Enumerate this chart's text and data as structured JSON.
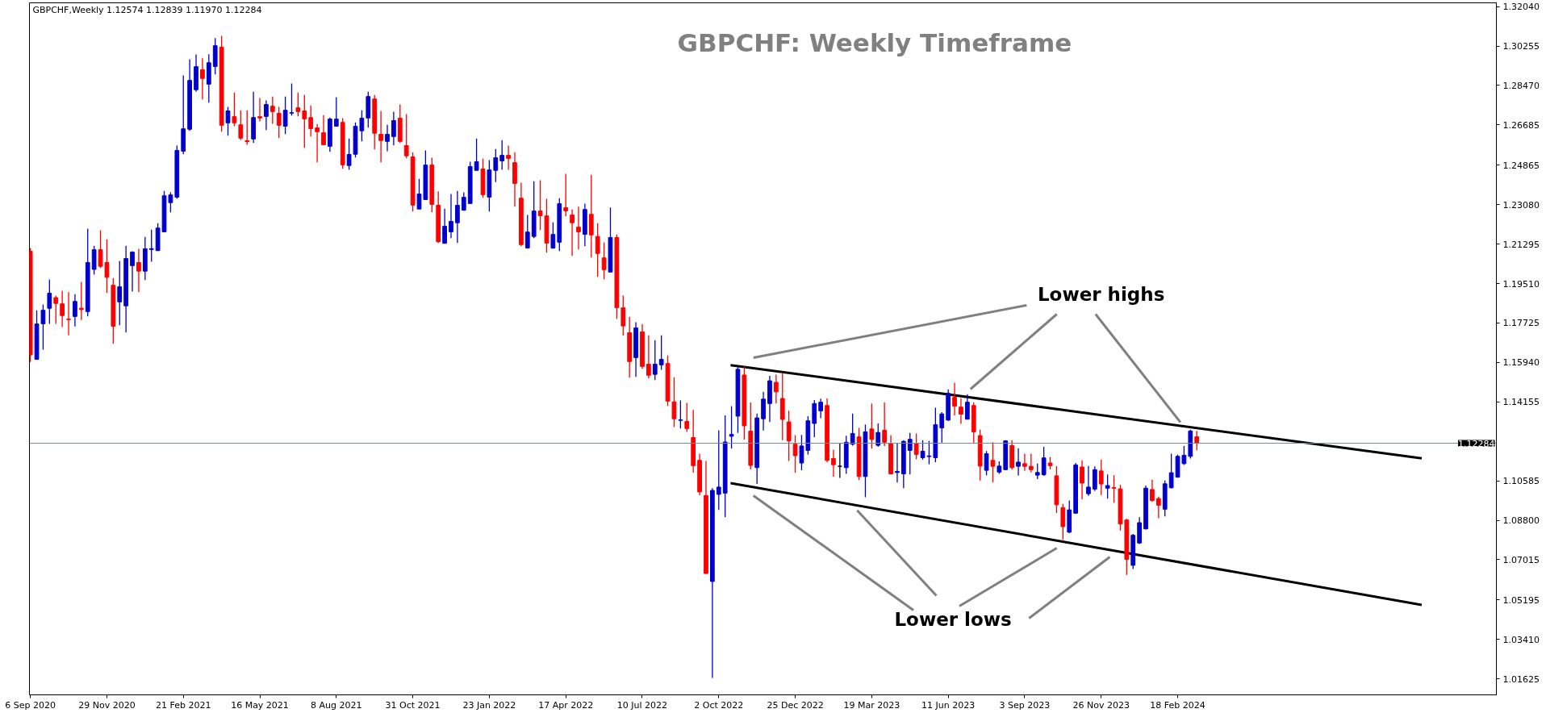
{
  "chart_data": {
    "type": "candlestick",
    "title": "GBPCHF: Weekly Timeframe",
    "annotations": [
      "GBPCHF,Weekly  1.12574 1.12839 1.11970 1.12284",
      {
        "text": "Lower highs",
        "x": "2024-02-21",
        "y": 1.1323
      },
      {
        "text": "Lower lows",
        "x": "2023-03-03",
        "y": 1.0925
      }
    ],
    "x": [
      "2020-09-06",
      "2020-09-13",
      "2020-09-20",
      "2020-09-27",
      "2020-10-04",
      "2020-10-11",
      "2020-10-18",
      "2020-10-25",
      "2020-11-01",
      "2020-11-08",
      "2020-11-15",
      "2020-11-22",
      "2020-11-29",
      "2020-12-06",
      "2020-12-13",
      "2020-12-20",
      "2020-12-27",
      "2021-01-03",
      "2021-01-10",
      "2021-01-17",
      "2021-01-24",
      "2021-01-31",
      "2021-02-07",
      "2021-02-14",
      "2021-02-21",
      "2021-02-28",
      "2021-03-07",
      "2021-03-14",
      "2021-03-21",
      "2021-03-28",
      "2021-04-04",
      "2021-04-11",
      "2021-04-18",
      "2021-04-25",
      "2021-05-02",
      "2021-05-09",
      "2021-05-16",
      "2021-05-23",
      "2021-05-30",
      "2021-06-06",
      "2021-06-13",
      "2021-06-20",
      "2021-06-27",
      "2021-07-04",
      "2021-07-11",
      "2021-07-18",
      "2021-07-25",
      "2021-08-01",
      "2021-08-08",
      "2021-08-15",
      "2021-08-22",
      "2021-08-29",
      "2021-09-05",
      "2021-09-12",
      "2021-09-19",
      "2021-09-26",
      "2021-10-03",
      "2021-10-10",
      "2021-10-17",
      "2021-10-24",
      "2021-10-31",
      "2021-11-07",
      "2021-11-14",
      "2021-11-21",
      "2021-11-28",
      "2021-12-05",
      "2021-12-12",
      "2021-12-19",
      "2021-12-26",
      "2022-01-02",
      "2022-01-09",
      "2022-01-16",
      "2022-01-23",
      "2022-01-30",
      "2022-02-06",
      "2022-02-13",
      "2022-02-20",
      "2022-02-27",
      "2022-03-06",
      "2022-03-13",
      "2022-03-20",
      "2022-03-27",
      "2022-04-03",
      "2022-04-10",
      "2022-04-17",
      "2022-04-24",
      "2022-05-01",
      "2022-05-08",
      "2022-05-15",
      "2022-05-22",
      "2022-05-29",
      "2022-06-05",
      "2022-06-12",
      "2022-06-19",
      "2022-06-26",
      "2022-07-03",
      "2022-07-10",
      "2022-07-17",
      "2022-07-24",
      "2022-07-31",
      "2022-08-07",
      "2022-08-14",
      "2022-08-21",
      "2022-08-28",
      "2022-09-04",
      "2022-09-11",
      "2022-09-18",
      "2022-09-25",
      "2022-10-02",
      "2022-10-09",
      "2022-10-16",
      "2022-10-23",
      "2022-10-30",
      "2022-11-06",
      "2022-11-13",
      "2022-11-20",
      "2022-11-27",
      "2022-12-04",
      "2022-12-11",
      "2022-12-18",
      "2022-12-25",
      "2023-01-01",
      "2023-01-08",
      "2023-01-15",
      "2023-01-22",
      "2023-01-29",
      "2023-02-05",
      "2023-02-12",
      "2023-02-19",
      "2023-02-26",
      "2023-03-05",
      "2023-03-12",
      "2023-03-19",
      "2023-03-26",
      "2023-04-02",
      "2023-04-09",
      "2023-04-16",
      "2023-04-23",
      "2023-04-30",
      "2023-05-07",
      "2023-05-14",
      "2023-05-21",
      "2023-05-28",
      "2023-06-04",
      "2023-06-11",
      "2023-06-18",
      "2023-06-25",
      "2023-07-02",
      "2023-07-09",
      "2023-07-16",
      "2023-07-23",
      "2023-07-30",
      "2023-08-06",
      "2023-08-13",
      "2023-08-20",
      "2023-08-27",
      "2023-09-03",
      "2023-09-10",
      "2023-09-17",
      "2023-09-24",
      "2023-10-01",
      "2023-10-08",
      "2023-10-15",
      "2023-10-22",
      "2023-10-29",
      "2023-11-05",
      "2023-11-12",
      "2023-11-19",
      "2023-11-26",
      "2023-12-03",
      "2023-12-10",
      "2023-12-17",
      "2023-12-24",
      "2023-12-31",
      "2024-01-07",
      "2024-01-14",
      "2024-01-21",
      "2024-01-28",
      "2024-02-04",
      "2024-02-11",
      "2024-02-18",
      "2024-02-25",
      "2024-03-03",
      "2024-03-10"
    ],
    "ohlc": [
      [
        1.2097,
        1.2112,
        1.1596,
        1.1628
      ],
      [
        1.1608,
        1.183,
        1.1605,
        1.1768
      ],
      [
        1.1769,
        1.1856,
        1.1652,
        1.183
      ],
      [
        1.1839,
        1.1969,
        1.1769,
        1.1907
      ],
      [
        1.1887,
        1.1896,
        1.1769,
        1.1861
      ],
      [
        1.1859,
        1.1918,
        1.1754,
        1.1806
      ],
      [
        1.179,
        1.1912,
        1.1717,
        1.1788
      ],
      [
        1.1802,
        1.1903,
        1.1757,
        1.187
      ],
      [
        1.1839,
        1.1958,
        1.1786,
        1.1833
      ],
      [
        1.1824,
        1.2199,
        1.1802,
        1.2046
      ],
      [
        1.2015,
        1.2122,
        1.1991,
        1.2104
      ],
      [
        1.2104,
        1.2192,
        1.2021,
        1.2029
      ],
      [
        1.2046,
        1.2151,
        1.1908,
        1.1979
      ],
      [
        1.1943,
        1.1976,
        1.1678,
        1.1758
      ],
      [
        1.1868,
        1.2053,
        1.1762,
        1.1936
      ],
      [
        1.185,
        1.2122,
        1.1729,
        1.2064
      ],
      [
        1.2032,
        1.2097,
        1.1915,
        1.2093
      ],
      [
        1.2046,
        1.2108,
        1.1912,
        1.2007
      ],
      [
        1.2007,
        1.2162,
        1.1967,
        1.2108
      ],
      [
        1.2105,
        1.2195,
        1.205,
        1.2109
      ],
      [
        1.21,
        1.2224,
        1.2098,
        1.2202
      ],
      [
        1.2185,
        1.237,
        1.2185,
        1.2348
      ],
      [
        1.2317,
        1.2363,
        1.2273,
        1.2352
      ],
      [
        1.2342,
        1.2575,
        1.2335,
        1.2553
      ],
      [
        1.255,
        1.2893,
        1.2536,
        1.2651
      ],
      [
        1.2649,
        1.2966,
        1.2642,
        1.287
      ],
      [
        1.2828,
        1.2987,
        1.2819,
        1.2932
      ],
      [
        1.2918,
        1.297,
        1.2784,
        1.2879
      ],
      [
        1.2853,
        1.2988,
        1.2769,
        1.295
      ],
      [
        1.2933,
        1.3061,
        1.2897,
        1.3027
      ],
      [
        1.302,
        1.3071,
        1.2638,
        1.2667
      ],
      [
        1.2678,
        1.275,
        1.262,
        1.2732
      ],
      [
        1.2706,
        1.2815,
        1.2663,
        1.2678
      ],
      [
        1.2669,
        1.2735,
        1.2601,
        1.2609
      ],
      [
        1.2597,
        1.2735,
        1.2579,
        1.2593
      ],
      [
        1.2605,
        1.2819,
        1.2587,
        1.2702
      ],
      [
        1.2706,
        1.279,
        1.2685,
        1.27
      ],
      [
        1.2707,
        1.2779,
        1.2645,
        1.2761
      ],
      [
        1.2753,
        1.2797,
        1.2674,
        1.2729
      ],
      [
        1.2721,
        1.275,
        1.2609,
        1.2667
      ],
      [
        1.2663,
        1.2797,
        1.2627,
        1.2735
      ],
      [
        1.2722,
        1.2856,
        1.2711,
        1.2724
      ],
      [
        1.2746,
        1.2815,
        1.2707,
        1.2729
      ],
      [
        1.2732,
        1.2804,
        1.2565,
        1.2696
      ],
      [
        1.2702,
        1.2757,
        1.2616,
        1.2652
      ],
      [
        1.2655,
        1.2673,
        1.2499,
        1.2638
      ],
      [
        1.2633,
        1.2713,
        1.2579,
        1.2579
      ],
      [
        1.2572,
        1.2702,
        1.2547,
        1.2695
      ],
      [
        1.2663,
        1.2794,
        1.2663,
        1.2695
      ],
      [
        1.268,
        1.2699,
        1.247,
        1.2488
      ],
      [
        1.2485,
        1.2607,
        1.2466,
        1.2535
      ],
      [
        1.2536,
        1.268,
        1.2521,
        1.2662
      ],
      [
        1.2642,
        1.2735,
        1.2594,
        1.2699
      ],
      [
        1.27,
        1.2819,
        1.2656,
        1.2797
      ],
      [
        1.2786,
        1.2804,
        1.2558,
        1.2631
      ],
      [
        1.2626,
        1.2732,
        1.2499,
        1.2598
      ],
      [
        1.2594,
        1.2669,
        1.255,
        1.2626
      ],
      [
        1.2616,
        1.2728,
        1.2576,
        1.2688
      ],
      [
        1.2699,
        1.2761,
        1.2587,
        1.2594
      ],
      [
        1.2575,
        1.2717,
        1.2518,
        1.2529
      ],
      [
        1.2524,
        1.2544,
        1.2277,
        1.2306
      ],
      [
        1.2288,
        1.2425,
        1.2288,
        1.2356
      ],
      [
        1.2331,
        1.2553,
        1.2331,
        1.2487
      ],
      [
        1.2487,
        1.252,
        1.2273,
        1.2309
      ],
      [
        1.2305,
        1.2368,
        1.2134,
        1.214
      ],
      [
        1.2133,
        1.229,
        1.2131,
        1.221
      ],
      [
        1.2185,
        1.2356,
        1.2156,
        1.2232
      ],
      [
        1.2226,
        1.237,
        1.2134,
        1.2305
      ],
      [
        1.2283,
        1.2363,
        1.228,
        1.2341
      ],
      [
        1.2313,
        1.2502,
        1.2313,
        1.248
      ],
      [
        1.2463,
        1.2607,
        1.2463,
        1.2502
      ],
      [
        1.2469,
        1.2516,
        1.2339,
        1.2353
      ],
      [
        1.2342,
        1.2509,
        1.2277,
        1.2465
      ],
      [
        1.2463,
        1.256,
        1.241,
        1.252
      ],
      [
        1.2506,
        1.26,
        1.2466,
        1.2531
      ],
      [
        1.2531,
        1.2575,
        1.2466,
        1.2517
      ],
      [
        1.2498,
        1.2545,
        1.2299,
        1.2404
      ],
      [
        1.2337,
        1.2407,
        1.212,
        1.2127
      ],
      [
        1.2112,
        1.2261,
        1.2109,
        1.2184
      ],
      [
        1.2164,
        1.2414,
        1.2156,
        1.2279
      ],
      [
        1.2279,
        1.2418,
        1.2193,
        1.2258
      ],
      [
        1.2257,
        1.2334,
        1.2091,
        1.2134
      ],
      [
        1.2111,
        1.2228,
        1.2109,
        1.2173
      ],
      [
        1.2138,
        1.2337,
        1.2098,
        1.2312
      ],
      [
        1.2294,
        1.2447,
        1.2255,
        1.228
      ],
      [
        1.2261,
        1.2286,
        1.2076,
        1.2226
      ],
      [
        1.2206,
        1.2299,
        1.2105,
        1.2185
      ],
      [
        1.2174,
        1.2312,
        1.212,
        1.2286
      ],
      [
        1.2264,
        1.2443,
        1.2069,
        1.2171
      ],
      [
        1.2164,
        1.2224,
        1.1981,
        1.2087
      ],
      [
        1.2067,
        1.2137,
        1.197,
        1.2014
      ],
      [
        1.2003,
        1.2295,
        1.2003,
        1.2159
      ],
      [
        1.2159,
        1.2173,
        1.1791,
        1.1842
      ],
      [
        1.1841,
        1.1897,
        1.1716,
        1.1759
      ],
      [
        1.1728,
        1.1801,
        1.1525,
        1.1598
      ],
      [
        1.1616,
        1.1776,
        1.1529,
        1.175
      ],
      [
        1.1732,
        1.1768,
        1.1565,
        1.1576
      ],
      [
        1.1586,
        1.1717,
        1.1521,
        1.1536
      ],
      [
        1.154,
        1.1695,
        1.1514,
        1.1586
      ],
      [
        1.1583,
        1.1717,
        1.1561,
        1.1608
      ],
      [
        1.1589,
        1.1626,
        1.1397,
        1.1419
      ],
      [
        1.1416,
        1.1527,
        1.1302,
        1.1339
      ],
      [
        1.1332,
        1.1422,
        1.1295,
        1.1334
      ],
      [
        1.1327,
        1.1411,
        1.128,
        1.1295
      ],
      [
        1.1254,
        1.1379,
        1.1094,
        1.1127
      ],
      [
        1.1151,
        1.1181,
        1.0993,
        1.1008
      ],
      [
        1.0992,
        1.1148,
        1.0639,
        1.0639
      ],
      [
        1.0603,
        1.1025,
        1.0167,
        1.1015
      ],
      [
        1.0997,
        1.1287,
        1.0927,
        1.103
      ],
      [
        1.1003,
        1.1354,
        1.0894,
        1.1234
      ],
      [
        1.126,
        1.1396,
        1.1204,
        1.1268
      ],
      [
        1.1351,
        1.1578,
        1.1275,
        1.1563
      ],
      [
        1.1537,
        1.1575,
        1.1245,
        1.1307
      ],
      [
        1.1283,
        1.1413,
        1.111,
        1.1128
      ],
      [
        1.1118,
        1.1363,
        1.1044,
        1.1343
      ],
      [
        1.1339,
        1.1461,
        1.1286,
        1.1428
      ],
      [
        1.1408,
        1.1533,
        1.1324,
        1.1511
      ],
      [
        1.1504,
        1.1539,
        1.1408,
        1.1461
      ],
      [
        1.1431,
        1.1548,
        1.1242,
        1.1336
      ],
      [
        1.1325,
        1.1375,
        1.1148,
        1.1239
      ],
      [
        1.1224,
        1.1265,
        1.1095,
        1.1172
      ],
      [
        1.1139,
        1.1266,
        1.1106,
        1.1216
      ],
      [
        1.1196,
        1.1351,
        1.1177,
        1.133
      ],
      [
        1.1318,
        1.1424,
        1.1256,
        1.1408
      ],
      [
        1.1375,
        1.143,
        1.1342,
        1.1414
      ],
      [
        1.1399,
        1.1431,
        1.1143,
        1.1151
      ],
      [
        1.1159,
        1.1199,
        1.1077,
        1.1131
      ],
      [
        1.1124,
        1.123,
        1.1072,
        1.1124
      ],
      [
        1.1118,
        1.1262,
        1.109,
        1.1233
      ],
      [
        1.1224,
        1.1363,
        1.1218,
        1.1272
      ],
      [
        1.1257,
        1.1298,
        1.1062,
        1.1078
      ],
      [
        1.1078,
        1.1313,
        1.0984,
        1.128
      ],
      [
        1.1293,
        1.1408,
        1.1204,
        1.1246
      ],
      [
        1.1219,
        1.1318,
        1.1212,
        1.1277
      ],
      [
        1.1287,
        1.1413,
        1.1216,
        1.1233
      ],
      [
        1.1227,
        1.1265,
        1.1087,
        1.109
      ],
      [
        1.1096,
        1.123,
        1.1051,
        1.1101
      ],
      [
        1.109,
        1.1242,
        1.1025,
        1.1237
      ],
      [
        1.1196,
        1.1275,
        1.1087,
        1.1246
      ],
      [
        1.1227,
        1.1272,
        1.1156,
        1.1178
      ],
      [
        1.1163,
        1.1242,
        1.1154,
        1.1192
      ],
      [
        1.1168,
        1.1239,
        1.1133,
        1.1171
      ],
      [
        1.1163,
        1.1389,
        1.1143,
        1.1312
      ],
      [
        1.1298,
        1.1369,
        1.1231,
        1.1361
      ],
      [
        1.1333,
        1.1472,
        1.133,
        1.1454
      ],
      [
        1.1436,
        1.1502,
        1.1354,
        1.1396
      ],
      [
        1.1392,
        1.1431,
        1.1316,
        1.136
      ],
      [
        1.1337,
        1.1449,
        1.1337,
        1.1414
      ],
      [
        1.1399,
        1.1413,
        1.1227,
        1.128
      ],
      [
        1.1263,
        1.129,
        1.106,
        1.1125
      ],
      [
        1.1106,
        1.1193,
        1.1083,
        1.1181
      ],
      [
        1.1151,
        1.1233,
        1.1051,
        1.1124
      ],
      [
        1.1098,
        1.1146,
        1.109,
        1.1125
      ],
      [
        1.1109,
        1.1242,
        1.1106,
        1.1239
      ],
      [
        1.1218,
        1.1242,
        1.1109,
        1.1118
      ],
      [
        1.1124,
        1.1206,
        1.1083,
        1.1143
      ],
      [
        1.1136,
        1.1181,
        1.1104,
        1.1124
      ],
      [
        1.1124,
        1.1181,
        1.1096,
        1.1109
      ],
      [
        1.1084,
        1.1136,
        1.1066,
        1.1096
      ],
      [
        1.1086,
        1.1212,
        1.1081,
        1.1162
      ],
      [
        1.1139,
        1.1166,
        1.111,
        1.1127
      ],
      [
        1.1081,
        1.1125,
        1.0913,
        1.095
      ],
      [
        1.0937,
        1.0954,
        1.0792,
        1.0851
      ],
      [
        1.0826,
        1.0969,
        1.0822,
        1.0927
      ],
      [
        1.0912,
        1.1139,
        1.0909,
        1.113
      ],
      [
        1.1121,
        1.1151,
        1.0975,
        1.1048
      ],
      [
        1.1,
        1.1125,
        1.099,
        1.103
      ],
      [
        1.1021,
        1.1124,
        1.1012,
        1.1109
      ],
      [
        1.1103,
        1.1154,
        1.0994,
        1.1044
      ],
      [
        1.1025,
        1.1087,
        1.0978,
        1.1037
      ],
      [
        1.1028,
        1.1084,
        1.0959,
        1.1025
      ],
      [
        1.1022,
        1.104,
        1.0833,
        1.0863
      ],
      [
        1.0881,
        1.0886,
        1.0633,
        1.0703
      ],
      [
        1.0676,
        1.0818,
        1.0659,
        1.0812
      ],
      [
        1.0777,
        1.0894,
        1.0772,
        1.0869
      ],
      [
        1.0841,
        1.1037,
        1.0838,
        1.1025
      ],
      [
        1.1019,
        1.1063,
        1.0963,
        1.0969
      ],
      [
        1.0978,
        1.0987,
        1.0889,
        1.0948
      ],
      [
        1.093,
        1.106,
        1.0897,
        1.1045
      ],
      [
        1.1027,
        1.1181,
        1.1024,
        1.1095
      ],
      [
        1.1075,
        1.1177,
        1.1072,
        1.1169
      ],
      [
        1.1136,
        1.1216,
        1.113,
        1.1174
      ],
      [
        1.1169,
        1.129,
        1.1159,
        1.1284
      ],
      [
        1.12574,
        1.12839,
        1.1197,
        1.12284
      ]
    ],
    "colors": [
      "#ff0000",
      "#0000cd",
      "#0000cd",
      "#0000cd",
      "#ff0000",
      "#ff0000",
      "#ff0000",
      "#0000cd",
      "#ff0000",
      "#0000cd",
      "#0000cd",
      "#ff0000",
      "#ff0000",
      "#ff0000",
      "#0000cd",
      "#0000cd",
      "#0000cd",
      "#ff0000",
      "#0000cd",
      "#0000cd",
      "#0000cd",
      "#0000cd",
      "#0000cd",
      "#0000cd",
      "#0000cd",
      "#0000cd",
      "#0000cd",
      "#ff0000",
      "#0000cd",
      "#0000cd",
      "#ff0000",
      "#0000cd",
      "#ff0000",
      "#ff0000",
      "#ff0000",
      "#0000cd",
      "#ff0000",
      "#0000cd",
      "#ff0000",
      "#ff0000",
      "#0000cd",
      "#0000cd",
      "#ff0000",
      "#ff0000",
      "#ff0000",
      "#ff0000",
      "#ff0000",
      "#0000cd",
      "#0000cd",
      "#ff0000",
      "#0000cd",
      "#0000cd",
      "#0000cd",
      "#0000cd",
      "#ff0000",
      "#ff0000",
      "#0000cd",
      "#0000cd",
      "#ff0000",
      "#ff0000",
      "#ff0000",
      "#0000cd",
      "#0000cd",
      "#ff0000",
      "#ff0000",
      "#0000cd",
      "#0000cd",
      "#0000cd",
      "#0000cd",
      "#0000cd",
      "#0000cd",
      "#ff0000",
      "#0000cd",
      "#0000cd",
      "#0000cd",
      "#ff0000",
      "#ff0000",
      "#ff0000",
      "#0000cd",
      "#0000cd",
      "#ff0000",
      "#ff0000",
      "#0000cd",
      "#0000cd",
      "#ff0000",
      "#ff0000",
      "#ff0000",
      "#0000cd",
      "#ff0000",
      "#ff0000",
      "#ff0000",
      "#0000cd",
      "#ff0000",
      "#ff0000",
      "#ff0000",
      "#0000cd",
      "#ff0000",
      "#ff0000",
      "#0000cd",
      "#0000cd",
      "#ff0000",
      "#ff0000",
      "#0000cd",
      "#ff0000",
      "#ff0000",
      "#ff0000",
      "#ff0000",
      "#0000cd",
      "#0000cd",
      "#0000cd",
      "#0000cd",
      "#0000cd",
      "#ff0000",
      "#ff0000",
      "#0000cd",
      "#0000cd",
      "#0000cd",
      "#ff0000",
      "#ff0000",
      "#ff0000",
      "#ff0000",
      "#0000cd",
      "#0000cd",
      "#0000cd",
      "#0000cd",
      "#ff0000",
      "#ff0000",
      "#000000",
      "#0000cd",
      "#0000cd",
      "#ff0000",
      "#0000cd",
      "#ff0000",
      "#0000cd",
      "#ff0000",
      "#ff0000",
      "#0000cd",
      "#0000cd",
      "#0000cd",
      "#ff0000",
      "#0000cd",
      "#0000cd",
      "#0000cd",
      "#0000cd",
      "#0000cd",
      "#ff0000",
      "#ff0000",
      "#0000cd",
      "#ff0000",
      "#ff0000",
      "#0000cd",
      "#ff0000",
      "#0000cd",
      "#0000cd",
      "#ff0000",
      "#0000cd",
      "#ff0000",
      "#ff0000",
      "#0000cd",
      "#0000cd",
      "#ff0000",
      "#ff0000",
      "#ff0000",
      "#0000cd",
      "#0000cd",
      "#ff0000",
      "#0000cd",
      "#0000cd",
      "#ff0000",
      "#0000cd",
      "#ff0000",
      "#ff0000",
      "#ff0000",
      "#0000cd",
      "#0000cd",
      "#0000cd",
      "#ff0000",
      "#ff0000",
      "#0000cd",
      "#0000cd",
      "#0000cd",
      "#0000cd",
      "#0000cd",
      "#ff0000"
    ],
    "series": [
      {
        "type": "line",
        "color": "#000000",
        "x": [
          "2022-10-15",
          "2024-11-12"
        ],
        "values": [
          1.1582,
          1.116
        ]
      },
      {
        "type": "line",
        "color": "#000000",
        "x": [
          "2022-10-15",
          "2024-11-12"
        ],
        "values": [
          1.1048,
          1.0497
        ]
      }
    ],
    "xlim": [
      "2020-09-05",
      "2025-02-02"
    ],
    "ylim": [
      1.009,
      1.3221
    ],
    "xticks": [
      {
        "value": "2020-09-06",
        "label": "6 Sep 2020"
      },
      {
        "value": "2020-11-29",
        "label": "29 Nov 2020"
      },
      {
        "value": "2021-02-21",
        "label": "21 Feb 2021"
      },
      {
        "value": "2021-05-16",
        "label": "16 May 2021"
      },
      {
        "value": "2021-08-08",
        "label": "8 Aug 2021"
      },
      {
        "value": "2021-10-31",
        "label": "31 Oct 2021"
      },
      {
        "value": "2022-01-23",
        "label": "23 Jan 2022"
      },
      {
        "value": "2022-04-17",
        "label": "17 Apr 2022"
      },
      {
        "value": "2022-07-10",
        "label": "10 Jul 2022"
      },
      {
        "value": "2022-10-02",
        "label": "2 Oct 2022"
      },
      {
        "value": "2022-12-25",
        "label": "25 Dec 2022"
      },
      {
        "value": "2023-03-19",
        "label": "19 Mar 2023"
      },
      {
        "value": "2023-06-11",
        "label": "11 Jun 2023"
      },
      {
        "value": "2023-09-03",
        "label": "3 Sep 2023"
      },
      {
        "value": "2023-11-26",
        "label": "26 Nov 2023"
      },
      {
        "value": "2024-02-18",
        "label": "18 Feb 2024"
      }
    ],
    "yticks": [
      {
        "value": 1.3204,
        "label": "1.32040"
      },
      1.30255,
      {
        "value": 1.2847,
        "label": "1.28470"
      },
      1.26685,
      1.24865,
      {
        "value": 1.2308,
        "label": "1.23080"
      },
      1.21295,
      {
        "value": 1.1951,
        "label": "1.19510"
      },
      1.17725,
      {
        "value": 1.1594,
        "label": "1.15940"
      },
      1.14155,
      1.10585,
      {
        "value": 1.088,
        "label": "1.08800"
      },
      1.07015,
      1.05195,
      {
        "value": 1.0341,
        "label": "1.03410"
      },
      1.01625
    ],
    "ref_lines": [
      {
        "axis": "y",
        "value": 1.12284,
        "label": "1.12284",
        "color": "#778899"
      }
    ],
    "grid": false
  }
}
